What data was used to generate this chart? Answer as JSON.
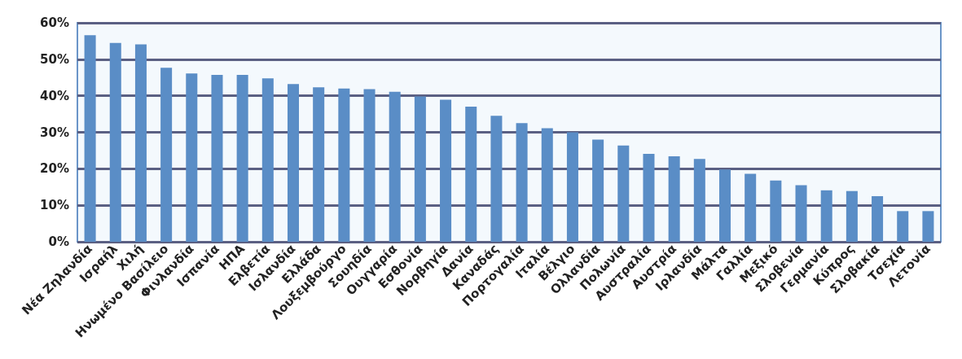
{
  "chart_data": {
    "type": "bar",
    "categories": [
      "Νέα Ζηλανδία",
      "Ισραήλ",
      "Χιλή",
      "Ηνωμένο Βασίλειο",
      "Φινλανδία",
      "Ισπανία",
      "ΗΠΑ",
      "Ελβετία",
      "Ισλανδία",
      "Ελλάδα",
      "Λουξεμβούργο",
      "Σουηδία",
      "Ουγγαρία",
      "Εσθονία",
      "Νορβηγία",
      "Δανία",
      "Καναδάς",
      "Πορτογαλία",
      "Ιταλία",
      "Βέλγιο",
      "Ολλανδία",
      "Πολωνία",
      "Αυστραλία",
      "Αυστρία",
      "Ιρλανδία",
      "Μάλτα",
      "Γαλλία",
      "Μεξικό",
      "Σλοβενία",
      "Γερμανία",
      "Κύπρος",
      "Σλοβακία",
      "Τσεχία",
      "Λετονία"
    ],
    "values": [
      56.6,
      54.5,
      54.1,
      47.7,
      46.1,
      45.7,
      45.7,
      44.8,
      43.2,
      42.3,
      42.0,
      41.8,
      41.1,
      39.8,
      38.9,
      37.0,
      34.5,
      32.5,
      31.1,
      30.0,
      28.0,
      26.4,
      24.1,
      23.4,
      22.7,
      19.8,
      18.6,
      16.8,
      15.5,
      14.1,
      13.9,
      12.5,
      8.4,
      8.4
    ],
    "color": "#5a8dc6",
    "ylim": [
      0,
      60
    ],
    "yticks": [
      {
        "value": 0,
        "label": "0%"
      },
      {
        "value": 10,
        "label": "10%"
      },
      {
        "value": 20,
        "label": "20%"
      },
      {
        "value": 30,
        "label": "30%"
      },
      {
        "value": 40,
        "label": "40%"
      },
      {
        "value": 50,
        "label": "50%"
      },
      {
        "value": 60,
        "label": "60%"
      }
    ],
    "grid": "y"
  }
}
